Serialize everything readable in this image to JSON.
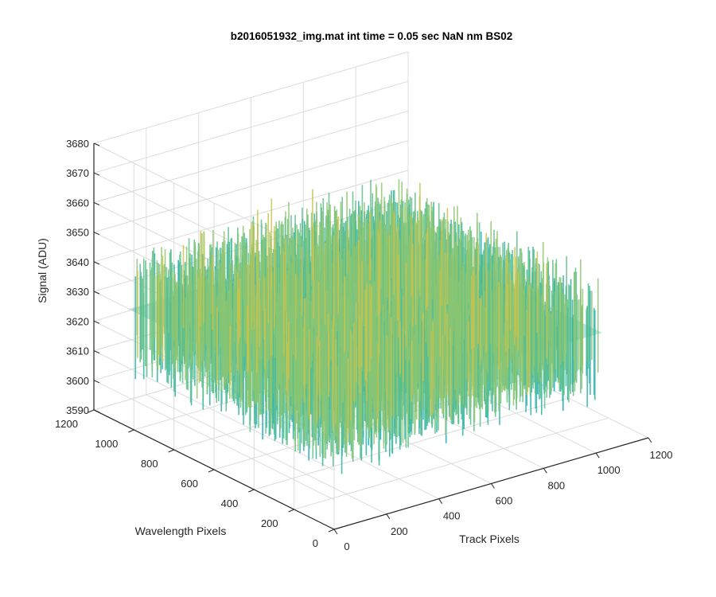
{
  "chart_data": {
    "type": "surface",
    "title": "b2016051932_img.mat int time = 0.05 sec  NaN nm BS02",
    "xlabel": "Track Pixels",
    "ylabel": "Wavelength Pixels",
    "zlabel": "Signal (ADU)",
    "xlim": [
      0,
      1200
    ],
    "ylim": [
      0,
      1200
    ],
    "zlim": [
      3590,
      3680
    ],
    "x_ticks": [
      "0",
      "200",
      "400",
      "600",
      "800",
      "1000",
      "1200"
    ],
    "y_ticks": [
      "0",
      "200",
      "400",
      "600",
      "800",
      "1000",
      "1200"
    ],
    "z_ticks": [
      "3590",
      "3600",
      "3610",
      "3620",
      "3630",
      "3640",
      "3650",
      "3660",
      "3670",
      "3680"
    ],
    "grid": true,
    "surface": {
      "x_range": [
        0,
        1024
      ],
      "y_range": [
        0,
        1024
      ],
      "mean_signal": 3630,
      "noise_range": [
        3596,
        3672
      ],
      "colormap": [
        "#1a90c9",
        "#12a8bf",
        "#2bb3a6",
        "#5fbf8a",
        "#8fc66f",
        "#c9c24f",
        "#e6bb3c"
      ]
    }
  }
}
